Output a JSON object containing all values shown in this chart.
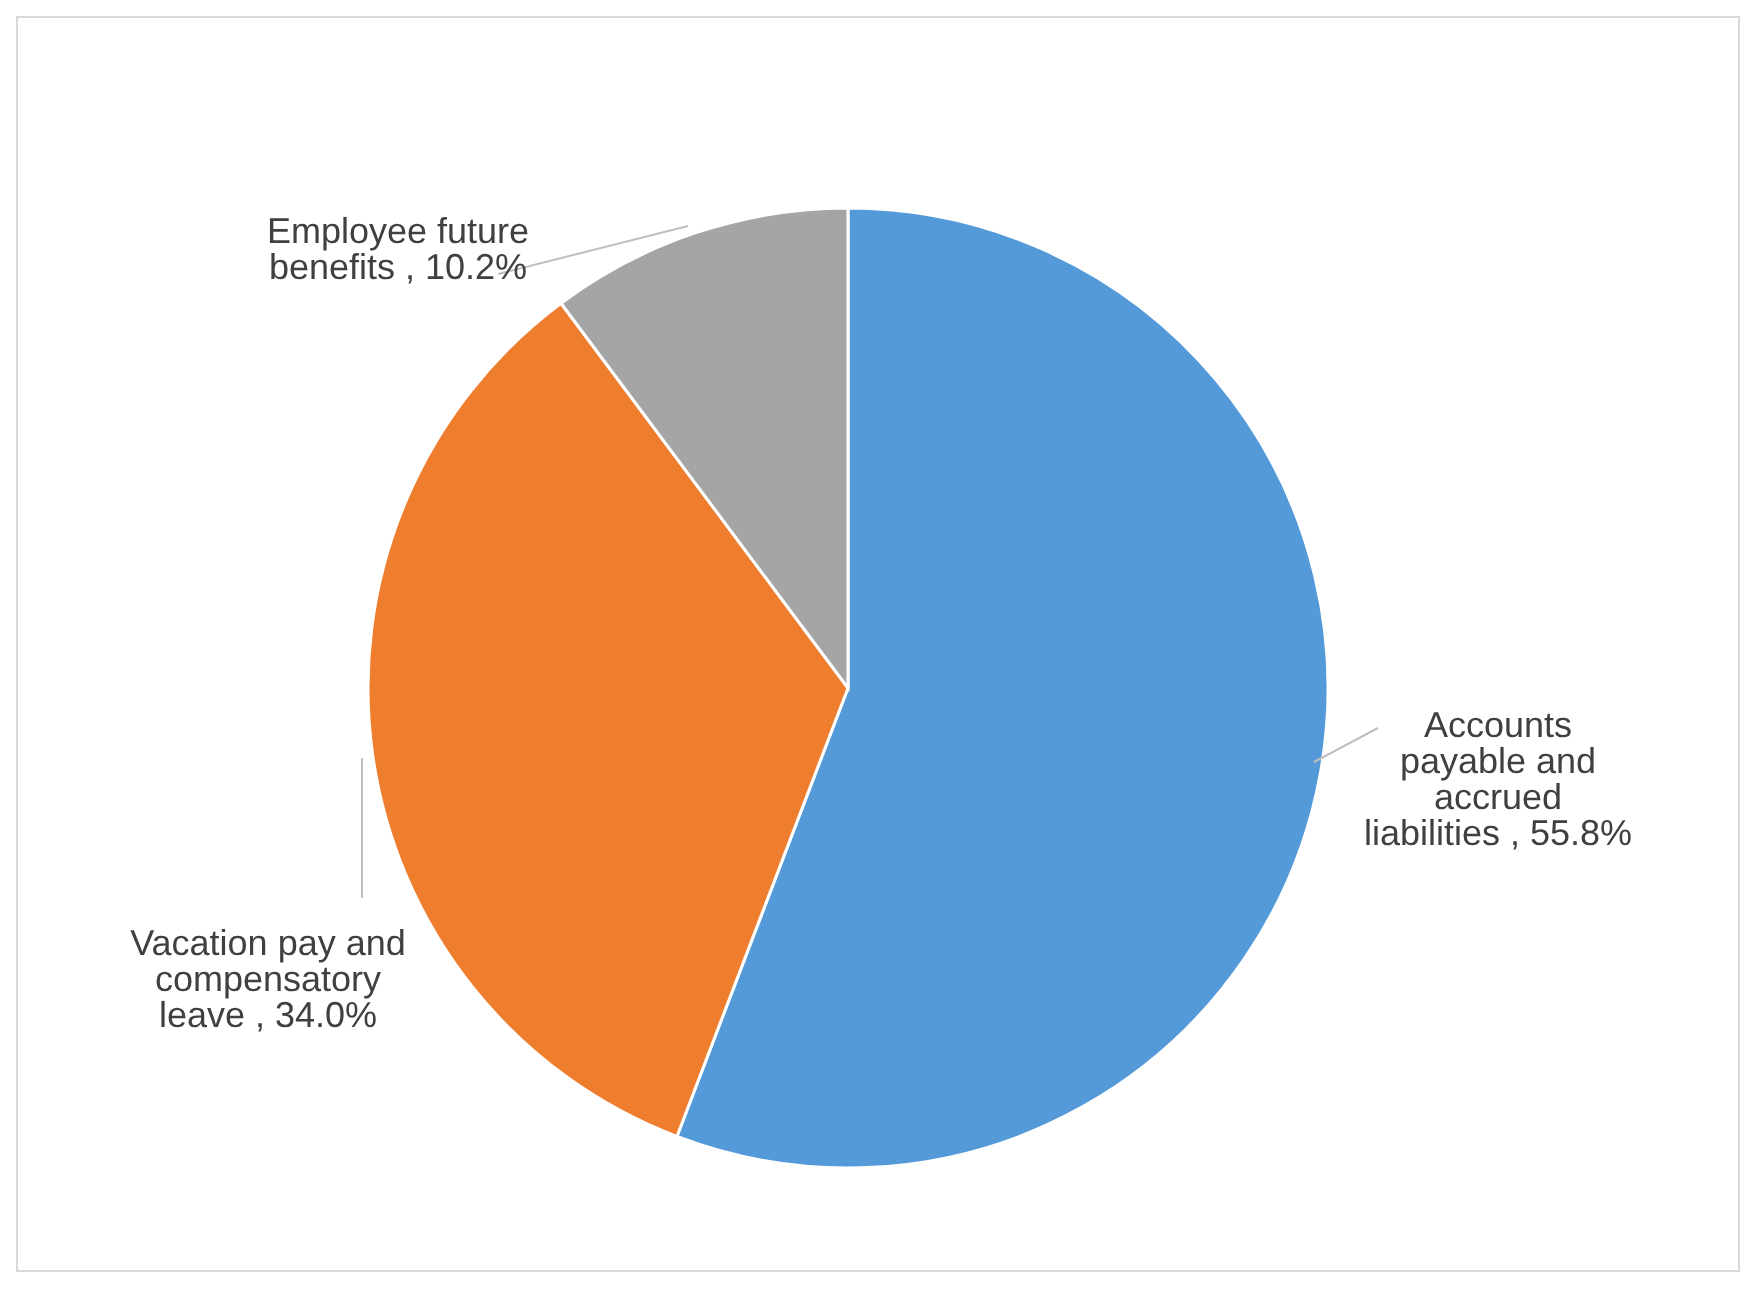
{
  "chart_data": {
    "type": "pie",
    "categories": [
      "Accounts payable and accrued liabilities",
      "Vacation pay and compensatory leave",
      "Employee future benefits"
    ],
    "values": [
      55.8,
      34.0,
      10.2
    ],
    "value_labels": [
      "55.8%",
      "34.0%",
      "10.2%"
    ],
    "colors": [
      "#5499d8",
      "#ef7d2e",
      "#a5a5a5"
    ]
  }
}
